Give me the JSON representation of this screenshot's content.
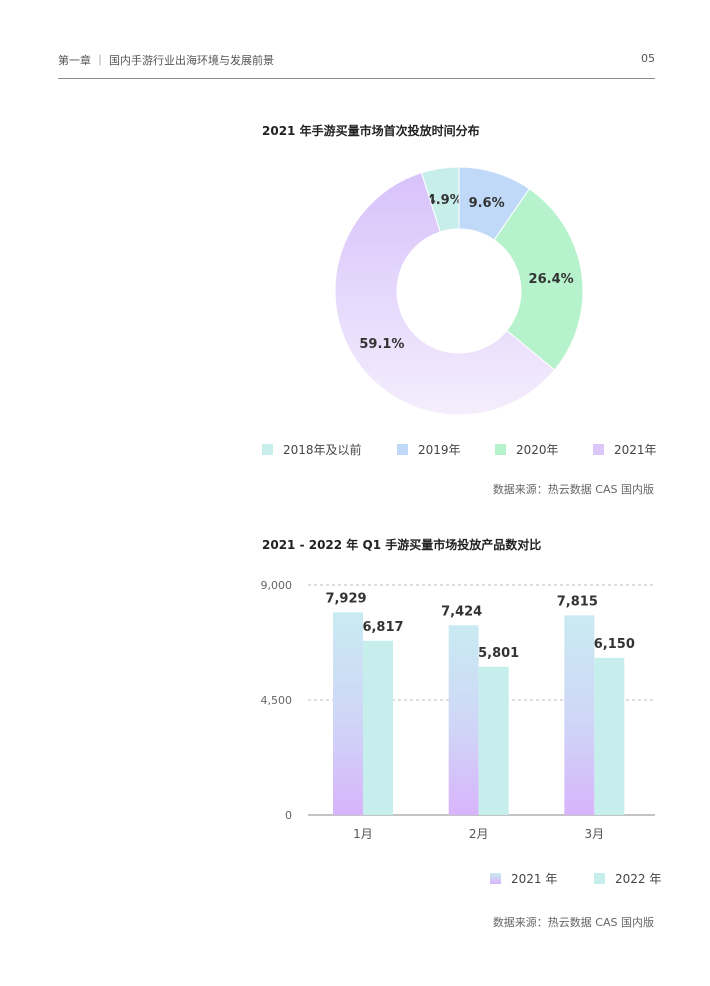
{
  "header": {
    "chapter": "第一章 ｜ 国内手游行业出海环境与发展前景",
    "page": "05"
  },
  "colors": {
    "c2018": "#c8eeec",
    "c2019": "#c0d9f8",
    "c2020": "#b6f2cc",
    "c2021": "#dcc7fb",
    "bar2021_top": "#c9ebf2",
    "bar2021_bottom": "#d8b6fb",
    "bar2022": "#c5eeec"
  },
  "chart_data": [
    {
      "type": "pie",
      "title": "2021 年手游买量市场首次投放时间分布",
      "labels": [
        "2018年及以前",
        "2019年",
        "2020年",
        "2021年"
      ],
      "values": [
        4.9,
        9.6,
        26.4,
        59.1
      ],
      "data_labels": [
        "4.9%",
        "9.6%",
        "26.4%",
        "59.1%"
      ],
      "legend_position": "bottom",
      "source": "数据来源：热云数据 CAS 国内版"
    },
    {
      "type": "bar",
      "title": "2021 - 2022 年 Q1 手游买量市场投放产品数对比",
      "categories": [
        "1月",
        "2月",
        "3月"
      ],
      "series": [
        {
          "name": "2021 年",
          "values": [
            7929,
            7424,
            7815
          ],
          "data_labels": [
            "7,929",
            "7,424",
            "7,815"
          ]
        },
        {
          "name": "2022 年",
          "values": [
            6817,
            5801,
            6150
          ],
          "data_labels": [
            "6,817",
            "5,801",
            "6,150"
          ]
        }
      ],
      "ylim": [
        0,
        9000
      ],
      "yticks": [
        0,
        4500,
        9000
      ],
      "ytick_labels": [
        "0",
        "4,500",
        "9,000"
      ],
      "grid": true,
      "legend_position": "bottom-right",
      "source": "数据来源：热云数据 CAS 国内版"
    }
  ]
}
